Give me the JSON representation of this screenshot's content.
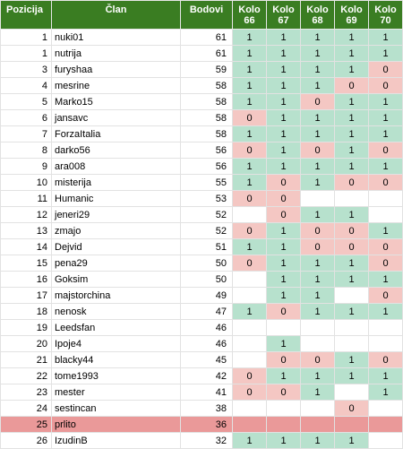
{
  "headers": {
    "position": "Pozicija",
    "member": "Član",
    "points": "Bodovi",
    "rounds": [
      {
        "label": "Kolo",
        "number": "66"
      },
      {
        "label": "Kolo",
        "number": "67"
      },
      {
        "label": "Kolo",
        "number": "68"
      },
      {
        "label": "Kolo",
        "number": "69"
      },
      {
        "label": "Kolo",
        "number": "70"
      }
    ]
  },
  "highlight_color": "#ea9999",
  "rows": [
    {
      "pos": "1",
      "name": "nuki01",
      "pts": "61",
      "r": [
        "1",
        "1",
        "1",
        "1",
        "1"
      ]
    },
    {
      "pos": "1",
      "name": "nutrija",
      "pts": "61",
      "r": [
        "1",
        "1",
        "1",
        "1",
        "1"
      ]
    },
    {
      "pos": "3",
      "name": "furyshaa",
      "pts": "59",
      "r": [
        "1",
        "1",
        "1",
        "1",
        "0"
      ]
    },
    {
      "pos": "4",
      "name": "mesrine",
      "pts": "58",
      "r": [
        "1",
        "1",
        "1",
        "0",
        "0"
      ]
    },
    {
      "pos": "5",
      "name": "Marko15",
      "pts": "58",
      "r": [
        "1",
        "1",
        "0",
        "1",
        "1"
      ]
    },
    {
      "pos": "6",
      "name": "jansavc",
      "pts": "58",
      "r": [
        "0",
        "1",
        "1",
        "1",
        "1"
      ]
    },
    {
      "pos": "7",
      "name": "ForzaItalia",
      "pts": "58",
      "r": [
        "1",
        "1",
        "1",
        "1",
        "1"
      ]
    },
    {
      "pos": "8",
      "name": "darko56",
      "pts": "56",
      "r": [
        "0",
        "1",
        "0",
        "1",
        "0"
      ]
    },
    {
      "pos": "9",
      "name": "ara008",
      "pts": "56",
      "r": [
        "1",
        "1",
        "1",
        "1",
        "1"
      ]
    },
    {
      "pos": "10",
      "name": "misterija",
      "pts": "55",
      "r": [
        "1",
        "0",
        "1",
        "0",
        "0"
      ]
    },
    {
      "pos": "11",
      "name": "Humanic",
      "pts": "53",
      "r": [
        "0",
        "0",
        "",
        "",
        ""
      ]
    },
    {
      "pos": "12",
      "name": "jeneri29",
      "pts": "52",
      "r": [
        "",
        "0",
        "1",
        "1",
        ""
      ]
    },
    {
      "pos": "13",
      "name": "zmajo",
      "pts": "52",
      "r": [
        "0",
        "1",
        "0",
        "0",
        "1"
      ]
    },
    {
      "pos": "14",
      "name": "Dejvid",
      "pts": "51",
      "r": [
        "1",
        "1",
        "0",
        "0",
        "0"
      ]
    },
    {
      "pos": "15",
      "name": "pena29",
      "pts": "50",
      "r": [
        "0",
        "1",
        "1",
        "1",
        "0"
      ]
    },
    {
      "pos": "16",
      "name": "Goksim",
      "pts": "50",
      "r": [
        "",
        "1",
        "1",
        "1",
        "1"
      ]
    },
    {
      "pos": "17",
      "name": "majstorchina",
      "pts": "49",
      "r": [
        "",
        "1",
        "1",
        "",
        "0"
      ]
    },
    {
      "pos": "18",
      "name": "nenosk",
      "pts": "47",
      "r": [
        "1",
        "0",
        "1",
        "1",
        "1"
      ]
    },
    {
      "pos": "19",
      "name": "Leedsfan",
      "pts": "46",
      "r": [
        "",
        "",
        "",
        "",
        ""
      ]
    },
    {
      "pos": "20",
      "name": "Ipoje4",
      "pts": "46",
      "r": [
        "",
        "1",
        "",
        "",
        ""
      ]
    },
    {
      "pos": "21",
      "name": "blacky44",
      "pts": "45",
      "r": [
        "",
        "0",
        "0",
        "1",
        "0"
      ]
    },
    {
      "pos": "22",
      "name": "tome1993",
      "pts": "42",
      "r": [
        "0",
        "1",
        "1",
        "1",
        "1"
      ]
    },
    {
      "pos": "23",
      "name": "mester",
      "pts": "41",
      "r": [
        "0",
        "0",
        "1",
        "",
        "1"
      ]
    },
    {
      "pos": "24",
      "name": "sestincan",
      "pts": "38",
      "r": [
        "",
        "",
        "",
        "0",
        ""
      ]
    },
    {
      "pos": "25",
      "name": "prlito",
      "pts": "36",
      "r": [
        "",
        "",
        "",
        "",
        ""
      ],
      "highlight": true
    },
    {
      "pos": "26",
      "name": "IzudinB",
      "pts": "32",
      "r": [
        "1",
        "1",
        "1",
        "1",
        ""
      ]
    }
  ]
}
